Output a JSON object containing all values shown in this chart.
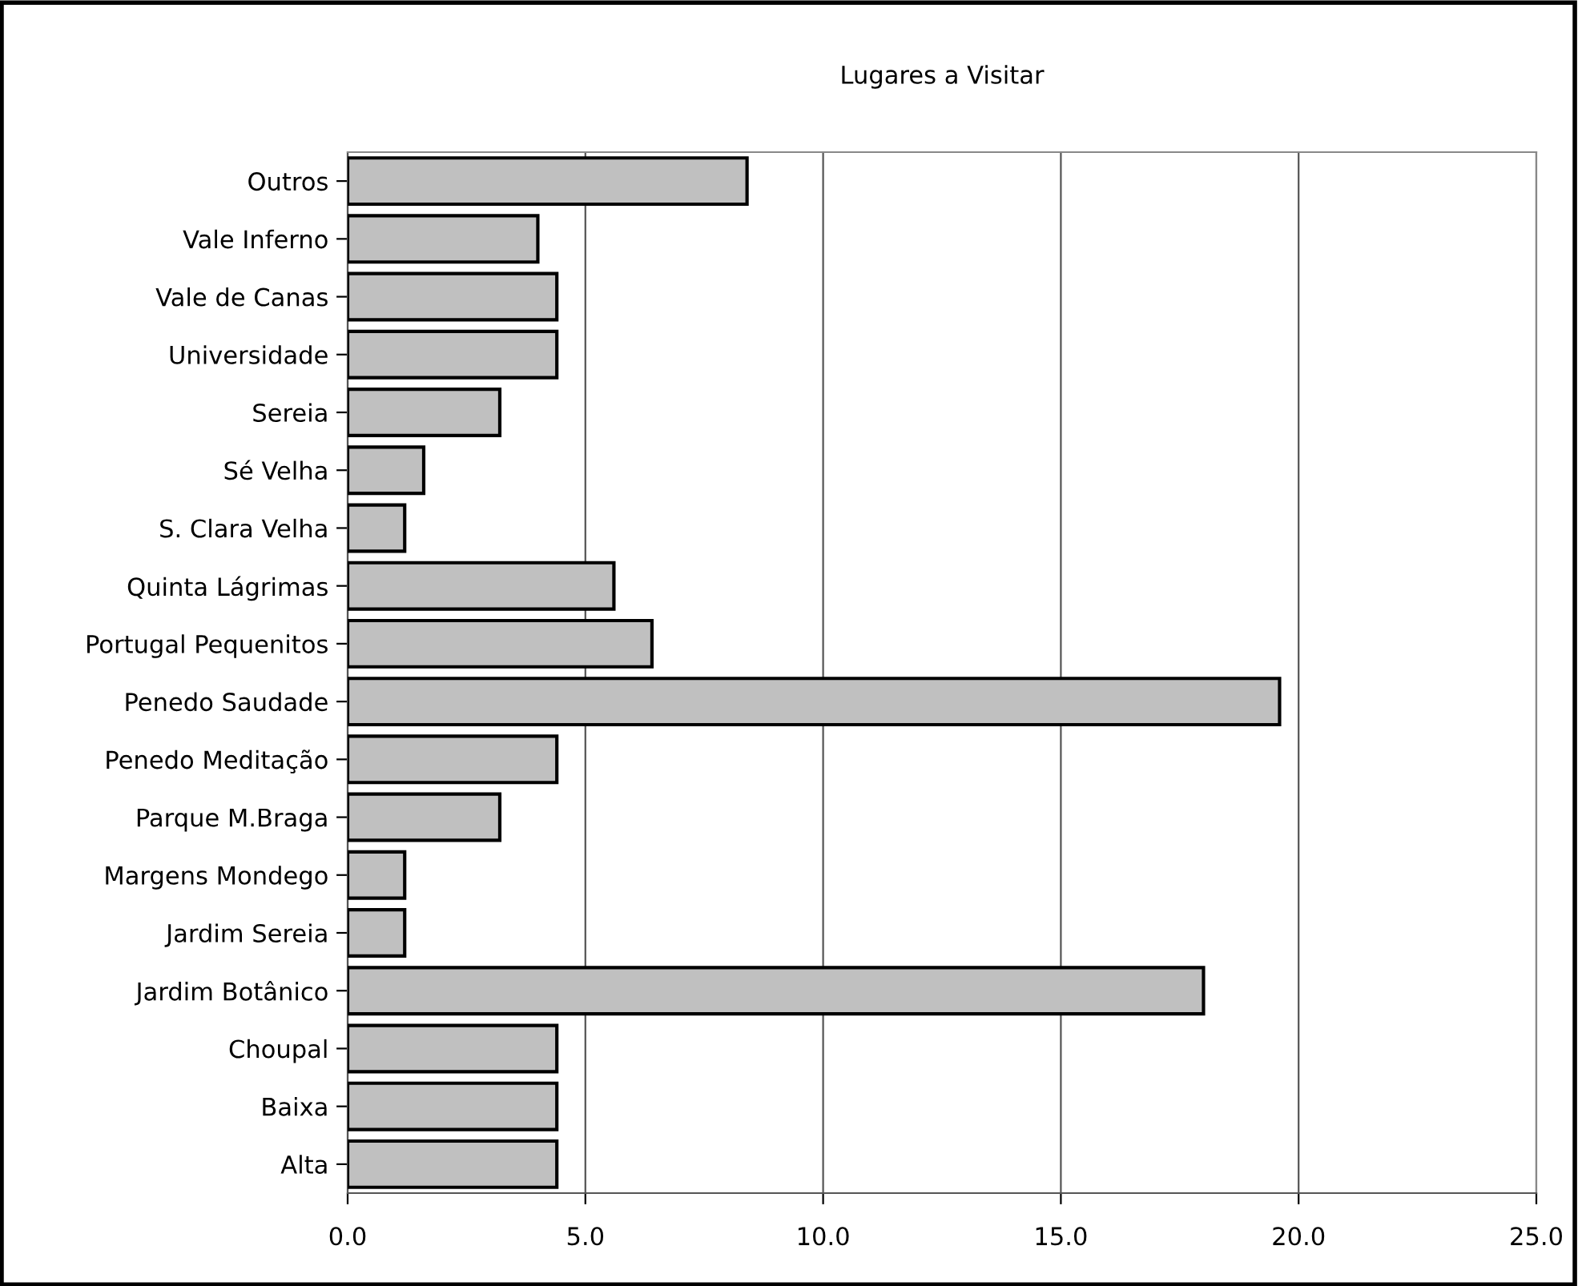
{
  "chart_data": {
    "type": "bar",
    "orientation": "horizontal",
    "title": "Lugares a Visitar",
    "categories": [
      "Outros",
      "Vale Inferno",
      "Vale de Canas",
      "Universidade",
      "Sereia",
      "Sé Velha",
      "S. Clara Velha",
      "Quinta Lágrimas",
      "Portugal Pequenitos",
      "Penedo Saudade",
      "Penedo Meditação",
      "Parque M.Braga",
      "Margens Mondego",
      "Jardim Sereia",
      "Jardim Botânico",
      "Choupal",
      "Baixa",
      "Alta"
    ],
    "values": [
      8.4,
      4.0,
      4.4,
      4.4,
      3.2,
      1.6,
      1.2,
      5.6,
      6.4,
      19.6,
      4.4,
      3.2,
      1.2,
      1.2,
      18.0,
      4.4,
      4.4,
      4.4
    ],
    "color": "#c0c0c0",
    "xlim": [
      0,
      25
    ],
    "xticks": [
      {
        "value": 0,
        "label": "0.0"
      },
      {
        "value": 5,
        "label": "5.0"
      },
      {
        "value": 10,
        "label": "10.0"
      },
      {
        "value": 15,
        "label": "15.0"
      },
      {
        "value": 20,
        "label": "20.0"
      },
      {
        "value": 25,
        "label": "25.0"
      }
    ],
    "grid": "x",
    "legend": false
  }
}
